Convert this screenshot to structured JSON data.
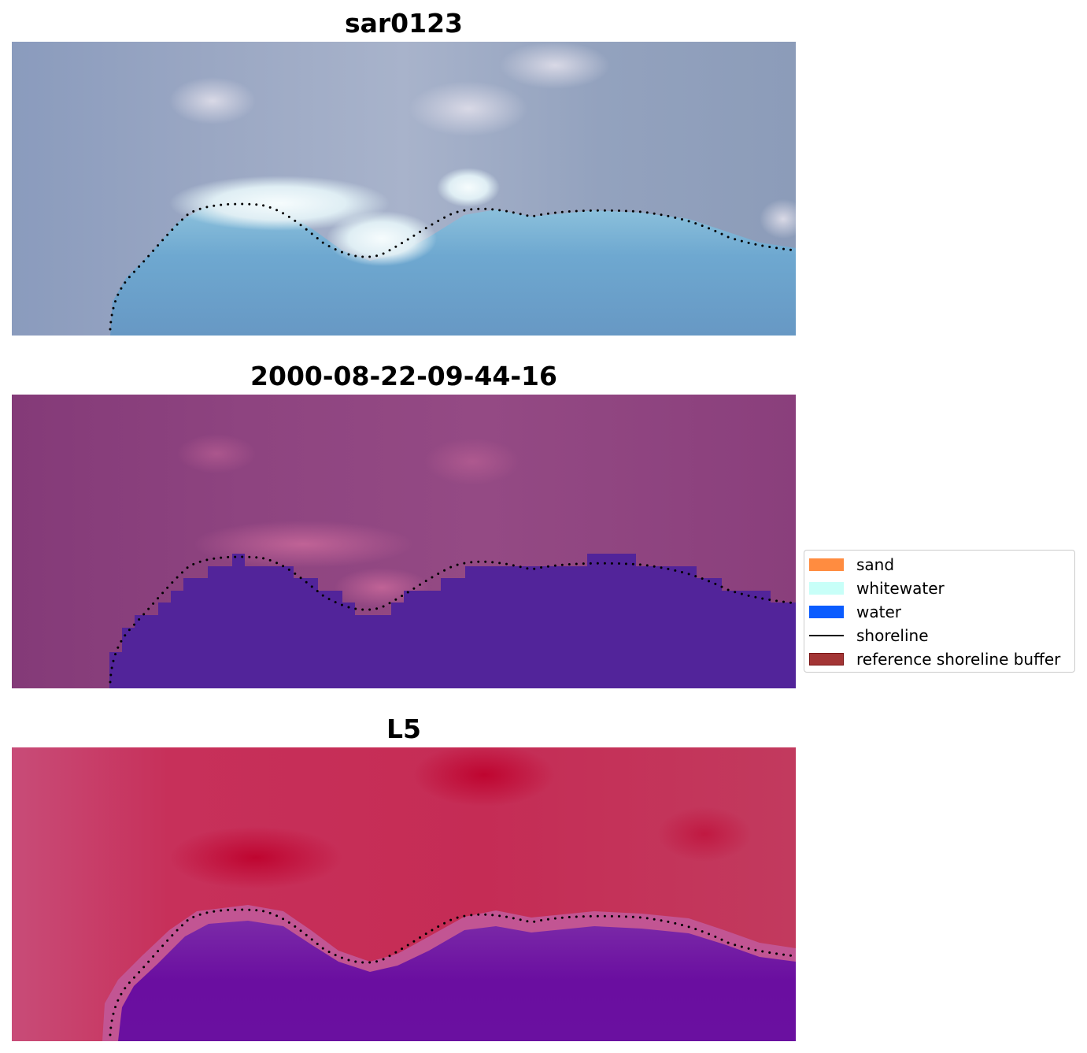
{
  "panels": [
    {
      "title": "sar0123",
      "kind": "rgb"
    },
    {
      "title": "2000-08-22-09-44-16",
      "kind": "classified"
    },
    {
      "title": "L5",
      "kind": "index"
    }
  ],
  "legend": {
    "items": [
      {
        "label": "sand",
        "color": "#ff8c40",
        "type": "patch"
      },
      {
        "label": "whitewater",
        "color": "#c8fff8",
        "type": "patch"
      },
      {
        "label": "water",
        "color": "#0a5cff",
        "type": "patch"
      },
      {
        "label": "shoreline",
        "color": "#000000",
        "type": "line"
      },
      {
        "label": "reference shoreline buffer",
        "color": "#a33535",
        "type": "patch-outlined"
      }
    ]
  },
  "colors": {
    "rgb_sky": "#8d9fbb",
    "rgb_water": "#6aa6cf",
    "rgb_whitewater": "#f2fbfb",
    "classified_land": "#8a3f7c",
    "classified_water": "#52249a",
    "index_land": "#c9244f",
    "index_water": "#6c10a0",
    "shoreline_dots": "#000000"
  }
}
